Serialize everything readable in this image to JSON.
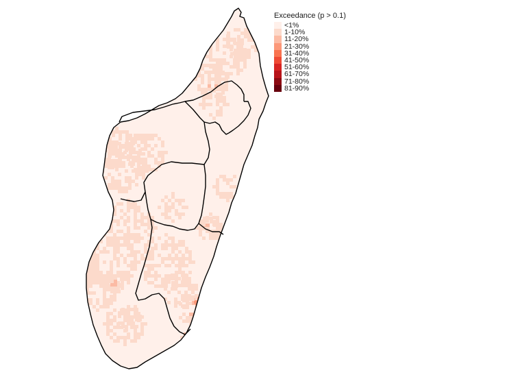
{
  "legend": {
    "title": "Exceedance (p > 0.1)",
    "classes": [
      {
        "label": "<1%",
        "color": "#fff0ea"
      },
      {
        "label": "1-10%",
        "color": "#fcdacb"
      },
      {
        "label": "11-20%",
        "color": "#fcbba4"
      },
      {
        "label": "21-30%",
        "color": "#fc9879"
      },
      {
        "label": "31-40%",
        "color": "#f9734f"
      },
      {
        "label": "41-50%",
        "color": "#ef4a34"
      },
      {
        "label": "51-60%",
        "color": "#d72422"
      },
      {
        "label": "61-70%",
        "color": "#b8141a"
      },
      {
        "label": "71-80%",
        "color": "#8c0a12"
      },
      {
        "label": "81-90%",
        "color": "#67000d"
      }
    ]
  },
  "map": {
    "region": "Madagascar",
    "outline_color": "#000000",
    "base_fill": "#fff0ea"
  }
}
